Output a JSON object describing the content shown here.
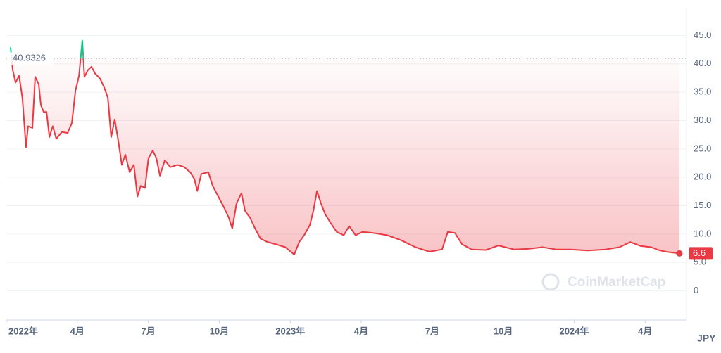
{
  "chart_data": {
    "type": "line",
    "currency": "JPY",
    "watermark": "CoinMarketCap",
    "reference_value": 40.9326,
    "x": [
      0.18,
      0.27,
      0.39,
      0.54,
      0.68,
      0.83,
      0.92,
      1.1,
      1.22,
      1.37,
      1.46,
      1.58,
      1.7,
      1.82,
      1.96,
      2.11,
      2.35,
      2.59,
      2.77,
      2.92,
      3.07,
      3.21,
      3.3,
      3.45,
      3.6,
      3.75,
      3.96,
      4.14,
      4.29,
      4.43,
      4.58,
      4.73,
      4.88,
      5.03,
      5.21,
      5.39,
      5.54,
      5.68,
      5.86,
      6.01,
      6.19,
      6.34,
      6.49,
      6.7,
      6.93,
      7.23,
      7.53,
      7.77,
      7.95,
      8.07,
      8.24,
      8.54,
      8.72,
      8.96,
      9.2,
      9.4,
      9.55,
      9.73,
      9.94,
      10.09,
      10.3,
      10.51,
      10.74,
      11.04,
      11.4,
      11.79,
      12.17,
      12.38,
      12.59,
      12.83,
      12.98,
      13.13,
      13.3,
      13.48,
      13.72,
      13.96,
      14.26,
      14.49,
      14.76,
      15.06,
      15.51,
      16.1,
      16.7,
      17.29,
      17.89,
      18.42,
      18.66,
      18.96,
      19.26,
      19.67,
      20.27,
      20.8,
      21.46,
      22.05,
      22.65,
      23.24,
      23.84,
      24.58,
      25.33,
      25.92,
      26.37,
      26.82,
      27.26,
      27.56,
      27.86,
      28.45
    ],
    "values": [
      42.9,
      38.9,
      36.7,
      37.9,
      34,
      25.3,
      29,
      28.7,
      37.7,
      36.4,
      32.7,
      31.5,
      31.5,
      27.1,
      29,
      26.8,
      28,
      27.8,
      29.6,
      35.2,
      37.9,
      44.1,
      37.7,
      38.9,
      39.5,
      38.3,
      37.4,
      35.8,
      34,
      27.1,
      30.2,
      26.5,
      22.2,
      24,
      20.9,
      22.2,
      16.6,
      18.5,
      18.1,
      23.4,
      24.7,
      23.4,
      20.3,
      23,
      21.8,
      22.2,
      21.8,
      20.9,
      19.7,
      17.6,
      20.6,
      20.9,
      18.5,
      16.6,
      14.7,
      12.9,
      11,
      15.4,
      17.2,
      14.1,
      12.9,
      11,
      9.2,
      8.6,
      8.2,
      7.7,
      6.4,
      8.6,
      9.8,
      11.6,
      14.1,
      17.6,
      15.4,
      13.5,
      11.9,
      10.4,
      9.8,
      11.4,
      9.8,
      10.4,
      10.2,
      9.8,
      8.9,
      7.7,
      6.9,
      7.3,
      10.4,
      10.2,
      8.2,
      7.3,
      7.2,
      8,
      7.3,
      7.4,
      7.7,
      7.3,
      7.3,
      7.1,
      7.3,
      7.7,
      8.6,
      7.9,
      7.7,
      7.2,
      6.9,
      6.6
    ],
    "color": "#ea3943",
    "color_above": "#16c784",
    "xlim": [
      0,
      28.6
    ],
    "xticks": [
      {
        "value": 0,
        "label": "2022年"
      },
      {
        "value": 3,
        "label": "4月"
      },
      {
        "value": 6,
        "label": "7月"
      },
      {
        "value": 9,
        "label": "10月"
      },
      {
        "value": 12,
        "label": "2023年"
      },
      {
        "value": 15,
        "label": "4月"
      },
      {
        "value": 18,
        "label": "7月"
      },
      {
        "value": 21,
        "label": "10月"
      },
      {
        "value": 24,
        "label": "2024年"
      },
      {
        "value": 27,
        "label": "4月"
      }
    ],
    "ylim": [
      -5,
      50
    ],
    "yticks": [
      0,
      {
        "value": 5,
        "label": "5.0"
      },
      {
        "value": 10,
        "label": "10.0"
      },
      {
        "value": 15,
        "label": "15.0"
      },
      {
        "value": 20,
        "label": "20.0"
      },
      {
        "value": 25,
        "label": "25.0"
      },
      {
        "value": 30,
        "label": "30.0"
      },
      {
        "value": 35,
        "label": "35.0"
      },
      {
        "value": 40,
        "label": "40.0"
      },
      {
        "value": 45,
        "label": "45.0"
      }
    ],
    "grid": true
  }
}
